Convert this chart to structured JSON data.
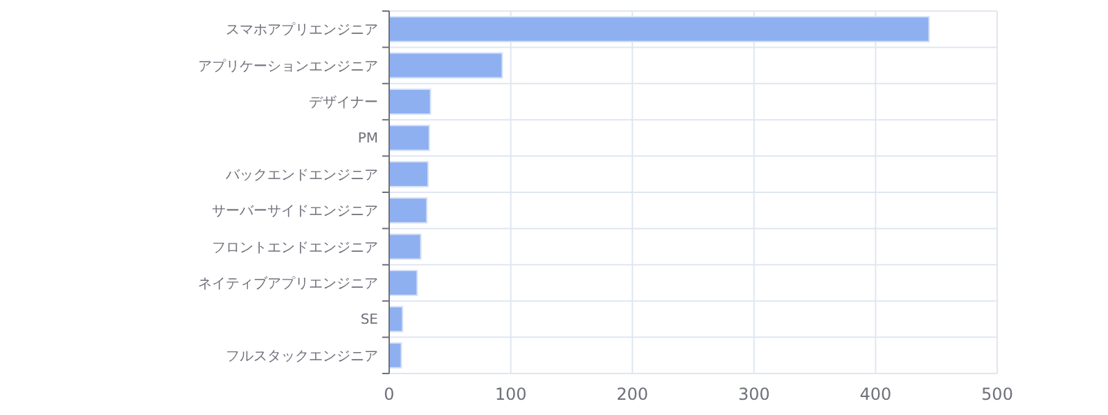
{
  "chart_data": {
    "type": "bar",
    "orientation": "horizontal",
    "categories": [
      "スマホアプリエンジニア",
      "アプリケーションエンジニア",
      "デザイナー",
      "PM",
      "バックエンドエンジニア",
      "サーバーサイドエンジニア",
      "フロントエンドエンジニア",
      "ネイティブアプリエンジニア",
      "SE",
      "フルスタックエンジニア"
    ],
    "values": [
      444,
      93,
      34,
      33,
      32,
      31,
      26,
      23,
      11,
      10
    ],
    "color": "#8fb0f0",
    "xlim": [
      0,
      500
    ],
    "xticks": [
      0,
      100,
      200,
      300,
      400,
      500
    ],
    "grid": true
  }
}
